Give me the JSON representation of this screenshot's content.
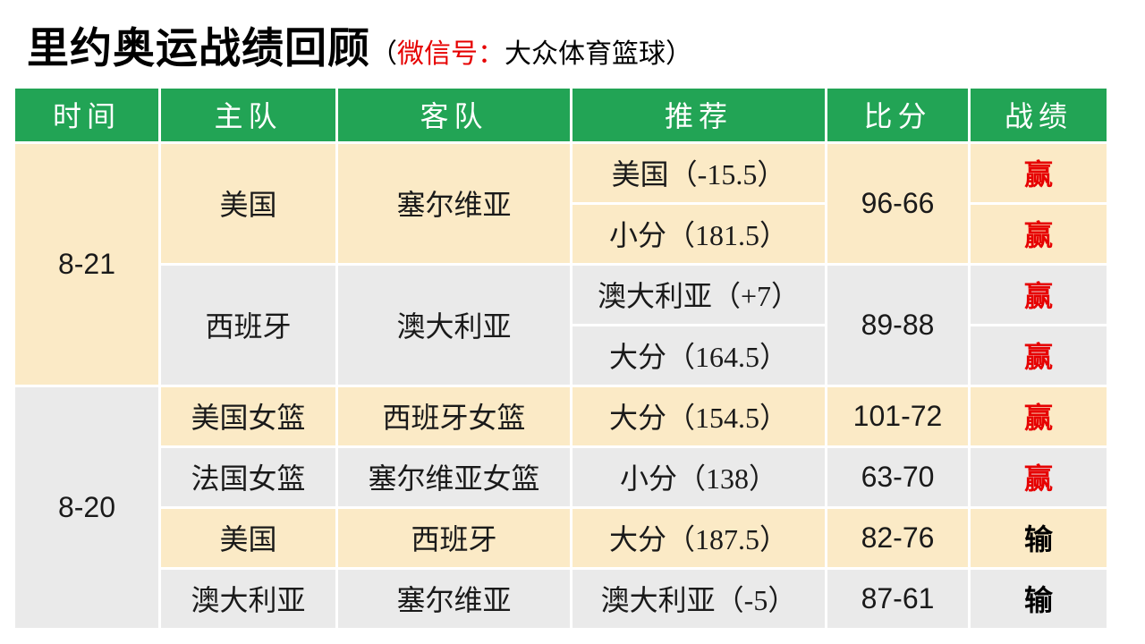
{
  "colors": {
    "header_bg": "#22a455",
    "row_cream": "#fbeac6",
    "row_gray": "#eaeaea",
    "accent_red": "#e60000"
  },
  "title": {
    "main": "里约奥运战绩回顾",
    "open_paren": "（",
    "wechat_label": "微信号：",
    "wechat_value": "大众体育篮球",
    "close_paren": "）"
  },
  "table": {
    "headers": [
      "时间",
      "主队",
      "客队",
      "推荐",
      "比分",
      "战绩"
    ],
    "rows": [
      {
        "time": "8-21",
        "home": "美国",
        "away": "塞尔维亚",
        "tip": "美国（-15.5）",
        "score": "96-66",
        "result": "赢",
        "outcome": "win"
      },
      {
        "tip": "小分（181.5）",
        "result": "赢",
        "outcome": "win"
      },
      {
        "home": "西班牙",
        "away": "澳大利亚",
        "tip": "澳大利亚（+7）",
        "score": "89-88",
        "result": "赢",
        "outcome": "win"
      },
      {
        "tip": "大分（164.5）",
        "result": "赢",
        "outcome": "win"
      },
      {
        "time": "8-20",
        "home": "美国女篮",
        "away": "西班牙女篮",
        "tip": "大分（154.5）",
        "score": "101-72",
        "result": "赢",
        "outcome": "win"
      },
      {
        "home": "法国女篮",
        "away": "塞尔维亚女篮",
        "tip": "小分（138）",
        "score": "63-70",
        "result": "赢",
        "outcome": "win"
      },
      {
        "home": "美国",
        "away": "西班牙",
        "tip": "大分（187.5）",
        "score": "82-76",
        "result": "输",
        "outcome": "loss"
      },
      {
        "home": "澳大利亚",
        "away": "塞尔维亚",
        "tip": "澳大利亚（-5）",
        "score": "87-61",
        "result": "输",
        "outcome": "loss"
      }
    ]
  },
  "chart_data": {
    "type": "table",
    "title": "里约奥运战绩回顾",
    "columns": [
      "时间",
      "主队",
      "客队",
      "推荐",
      "比分",
      "战绩"
    ],
    "rows": [
      [
        "8-21",
        "美国",
        "塞尔维亚",
        "美国（-15.5）",
        "96-66",
        "赢"
      ],
      [
        "8-21",
        "美国",
        "塞尔维亚",
        "小分（181.5）",
        "96-66",
        "赢"
      ],
      [
        "8-21",
        "西班牙",
        "澳大利亚",
        "澳大利亚（+7）",
        "89-88",
        "赢"
      ],
      [
        "8-21",
        "西班牙",
        "澳大利亚",
        "大分（164.5）",
        "89-88",
        "赢"
      ],
      [
        "8-20",
        "美国女篮",
        "西班牙女篮",
        "大分（154.5）",
        "101-72",
        "赢"
      ],
      [
        "8-20",
        "法国女篮",
        "塞尔维亚女篮",
        "小分（138）",
        "63-70",
        "赢"
      ],
      [
        "8-20",
        "美国",
        "西班牙",
        "大分（187.5）",
        "82-76",
        "输"
      ],
      [
        "8-20",
        "澳大利亚",
        "塞尔维亚",
        "澳大利亚（-5）",
        "87-61",
        "输"
      ]
    ]
  }
}
